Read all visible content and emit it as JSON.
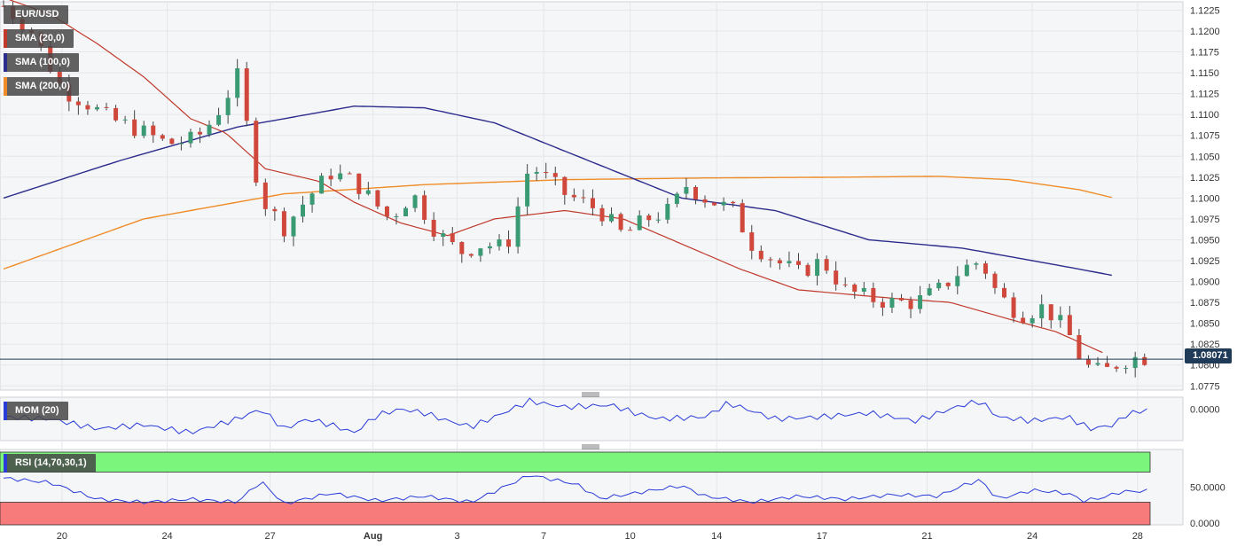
{
  "chart_data": {
    "type": "candlestick",
    "symbol": "EUR/USD",
    "indicators": [
      {
        "name": "SMA (20,0)",
        "color": "#c0392b"
      },
      {
        "name": "SMA (100,0)",
        "color": "#2c2c8c"
      },
      {
        "name": "SMA (200,0)",
        "color": "#f08c28"
      }
    ],
    "last_price": "1.08071",
    "last_price_value": 1.0807,
    "price_axis": {
      "ticks": [
        "1.1225",
        "1.1200",
        "1.1175",
        "1.1150",
        "1.1125",
        "1.1100",
        "1.1075",
        "1.1050",
        "1.1025",
        "1.1000",
        "1.0975",
        "1.0950",
        "1.0925",
        "1.0900",
        "1.0875",
        "1.0850",
        "1.0825",
        "1.0800",
        "1.0775"
      ],
      "ylim": [
        1.077,
        1.1235
      ]
    },
    "x_ticks": [
      "20",
      "24",
      "27",
      "Aug",
      "3",
      "7",
      "10",
      "14",
      "17",
      "21",
      "24",
      "28"
    ],
    "sma_key_points": {
      "sma20": [
        [
          0,
          1.124
        ],
        [
          20,
          1.122
        ],
        [
          40,
          1.1185
        ],
        [
          60,
          1.1145
        ],
        [
          80,
          1.1095
        ],
        [
          95,
          1.1078
        ],
        [
          112,
          1.1035
        ],
        [
          135,
          1.102
        ],
        [
          150,
          1.0995
        ],
        [
          170,
          1.097
        ],
        [
          190,
          1.0955
        ],
        [
          210,
          1.0975
        ],
        [
          240,
          1.0985
        ],
        [
          265,
          1.0975
        ],
        [
          290,
          1.0945
        ],
        [
          315,
          1.0915
        ],
        [
          340,
          1.089
        ],
        [
          360,
          1.0885
        ],
        [
          380,
          1.088
        ],
        [
          405,
          1.0875
        ],
        [
          430,
          1.0855
        ],
        [
          450,
          1.084
        ],
        [
          470,
          1.0815
        ]
      ],
      "sma100": [
        [
          0,
          1.1
        ],
        [
          50,
          1.1045
        ],
        [
          100,
          1.1085
        ],
        [
          150,
          1.111
        ],
        [
          180,
          1.1108
        ],
        [
          210,
          1.109
        ],
        [
          250,
          1.1045
        ],
        [
          290,
          1.1
        ],
        [
          330,
          1.0985
        ],
        [
          370,
          1.095
        ],
        [
          410,
          1.094
        ],
        [
          450,
          1.092
        ],
        [
          475,
          1.0907
        ]
      ],
      "sma200": [
        [
          0,
          1.0915
        ],
        [
          60,
          1.0975
        ],
        [
          120,
          1.1005
        ],
        [
          180,
          1.1016
        ],
        [
          240,
          1.1022
        ],
        [
          300,
          1.1024
        ],
        [
          360,
          1.1025
        ],
        [
          400,
          1.1026
        ],
        [
          430,
          1.1022
        ],
        [
          460,
          1.101
        ],
        [
          475,
          1.1
        ]
      ]
    },
    "candle_anchors": [
      [
        0,
        1.123
      ],
      [
        12,
        1.12
      ],
      [
        25,
        1.113
      ],
      [
        35,
        1.1115
      ],
      [
        45,
        1.1095
      ],
      [
        55,
        1.1085
      ],
      [
        70,
        1.1065
      ],
      [
        82,
        1.107
      ],
      [
        90,
        1.1095
      ],
      [
        100,
        1.1145
      ],
      [
        110,
        1.1
      ],
      [
        120,
        1.0965
      ],
      [
        130,
        1.1
      ],
      [
        140,
        1.103
      ],
      [
        150,
        1.102
      ],
      [
        165,
        1.0975
      ],
      [
        175,
        1.1005
      ],
      [
        185,
        1.096
      ],
      [
        195,
        1.0935
      ],
      [
        205,
        1.0945
      ],
      [
        215,
        1.094
      ],
      [
        225,
        1.104
      ],
      [
        240,
        1.1005
      ],
      [
        255,
        1.0985
      ],
      [
        265,
        1.0955
      ],
      [
        275,
        1.0975
      ],
      [
        285,
        1.0985
      ],
      [
        292,
        1.1015
      ],
      [
        300,
        1.1
      ],
      [
        312,
        1.0985
      ],
      [
        320,
        1.0945
      ],
      [
        330,
        1.0925
      ],
      [
        340,
        1.091
      ],
      [
        350,
        1.0925
      ],
      [
        360,
        1.089
      ],
      [
        370,
        1.088
      ],
      [
        380,
        1.0875
      ],
      [
        390,
        1.0875
      ],
      [
        400,
        1.089
      ],
      [
        410,
        1.0915
      ],
      [
        418,
        1.0925
      ],
      [
        425,
        1.0885
      ],
      [
        435,
        1.086
      ],
      [
        445,
        1.087
      ],
      [
        455,
        1.084
      ],
      [
        462,
        1.08
      ],
      [
        470,
        1.079
      ],
      [
        478,
        1.0805
      ],
      [
        486,
        1.081
      ],
      [
        490,
        1.0808
      ]
    ],
    "mom": {
      "name": "MOM (20)",
      "tick": "0.0000",
      "series": [
        [
          0,
          -0.004
        ],
        [
          20,
          -0.005
        ],
        [
          40,
          -0.01
        ],
        [
          60,
          -0.008
        ],
        [
          80,
          -0.012
        ],
        [
          100,
          -0.005
        ],
        [
          110,
          0.0
        ],
        [
          120,
          -0.01
        ],
        [
          130,
          -0.005
        ],
        [
          140,
          -0.008
        ],
        [
          150,
          -0.012
        ],
        [
          160,
          -0.003
        ],
        [
          170,
          0.0
        ],
        [
          180,
          -0.002
        ],
        [
          190,
          -0.006
        ],
        [
          200,
          -0.009
        ],
        [
          210,
          -0.004
        ],
        [
          225,
          0.004
        ],
        [
          240,
          0.001
        ],
        [
          260,
          0.002
        ],
        [
          270,
          -0.002
        ],
        [
          280,
          -0.005
        ],
        [
          300,
          -0.004
        ],
        [
          310,
          0.003
        ],
        [
          330,
          -0.005
        ],
        [
          350,
          -0.004
        ],
        [
          370,
          -0.002
        ],
        [
          390,
          -0.006
        ],
        [
          400,
          -0.002
        ],
        [
          410,
          0.002
        ],
        [
          418,
          0.004
        ],
        [
          425,
          -0.004
        ],
        [
          440,
          -0.006
        ],
        [
          455,
          -0.004
        ],
        [
          465,
          -0.01
        ],
        [
          475,
          -0.008
        ],
        [
          480,
          -0.003
        ],
        [
          490,
          0.0
        ]
      ],
      "ylim": [
        -0.016,
        0.006
      ]
    },
    "rsi": {
      "name": "RSI (14,70,30,1)",
      "ticks": [
        "50.0000",
        "0.0000"
      ],
      "overbought": 70,
      "oversold": 30,
      "series": [
        [
          0,
          62
        ],
        [
          20,
          56
        ],
        [
          40,
          34
        ],
        [
          60,
          30
        ],
        [
          80,
          34
        ],
        [
          100,
          30
        ],
        [
          110,
          58
        ],
        [
          120,
          28
        ],
        [
          140,
          42
        ],
        [
          160,
          32
        ],
        [
          180,
          38
        ],
        [
          200,
          30
        ],
        [
          225,
          66
        ],
        [
          245,
          54
        ],
        [
          255,
          35
        ],
        [
          270,
          42
        ],
        [
          290,
          52
        ],
        [
          300,
          38
        ],
        [
          320,
          30
        ],
        [
          340,
          38
        ],
        [
          360,
          34
        ],
        [
          380,
          40
        ],
        [
          400,
          38
        ],
        [
          410,
          52
        ],
        [
          418,
          60
        ],
        [
          425,
          34
        ],
        [
          440,
          46
        ],
        [
          455,
          42
        ],
        [
          462,
          32
        ],
        [
          470,
          36
        ],
        [
          478,
          44
        ],
        [
          490,
          45
        ]
      ],
      "ylim": [
        0,
        100
      ]
    }
  }
}
